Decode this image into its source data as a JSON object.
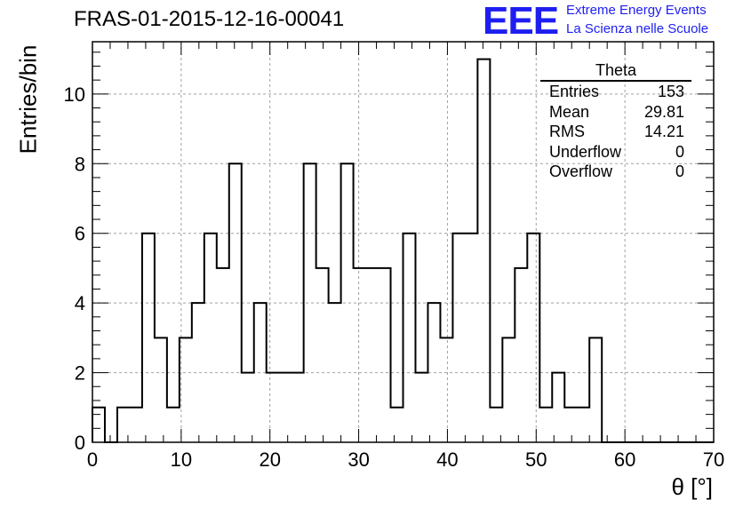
{
  "header": {
    "title": "FRAS-01-2015-12-16-00041",
    "logo_text": "EEE",
    "logo_line1": "Extreme Energy Events",
    "logo_line2": "La Scienza nelle Scuole"
  },
  "stats": {
    "title": "Theta",
    "rows": [
      {
        "label": "Entries",
        "value": "153"
      },
      {
        "label": "Mean",
        "value": "29.81"
      },
      {
        "label": "RMS",
        "value": "14.21"
      },
      {
        "label": "Underflow",
        "value": "0"
      },
      {
        "label": "Overflow",
        "value": "0"
      }
    ]
  },
  "chart_data": {
    "type": "histogram",
    "title": "FRAS-01-2015-12-16-00041",
    "xlabel": "θ [°]",
    "ylabel": "Entries/bin",
    "xlim": [
      0,
      70
    ],
    "ylim": [
      0,
      11.5
    ],
    "xticks": [
      0,
      10,
      20,
      30,
      40,
      50,
      60,
      70
    ],
    "yticks": [
      0,
      2,
      4,
      6,
      8,
      10
    ],
    "grid": true,
    "bin_width": 1.4,
    "bin_edges_start": 0,
    "values": [
      1,
      0,
      1,
      1,
      6,
      3,
      1,
      3,
      4,
      6,
      5,
      8,
      2,
      4,
      2,
      2,
      2,
      8,
      5,
      4,
      8,
      5,
      5,
      5,
      1,
      6,
      2,
      4,
      3,
      6,
      6,
      11,
      1,
      3,
      5,
      6,
      1,
      2,
      1,
      1,
      3,
      0,
      0,
      0,
      0,
      0,
      0,
      0,
      0,
      0
    ]
  }
}
